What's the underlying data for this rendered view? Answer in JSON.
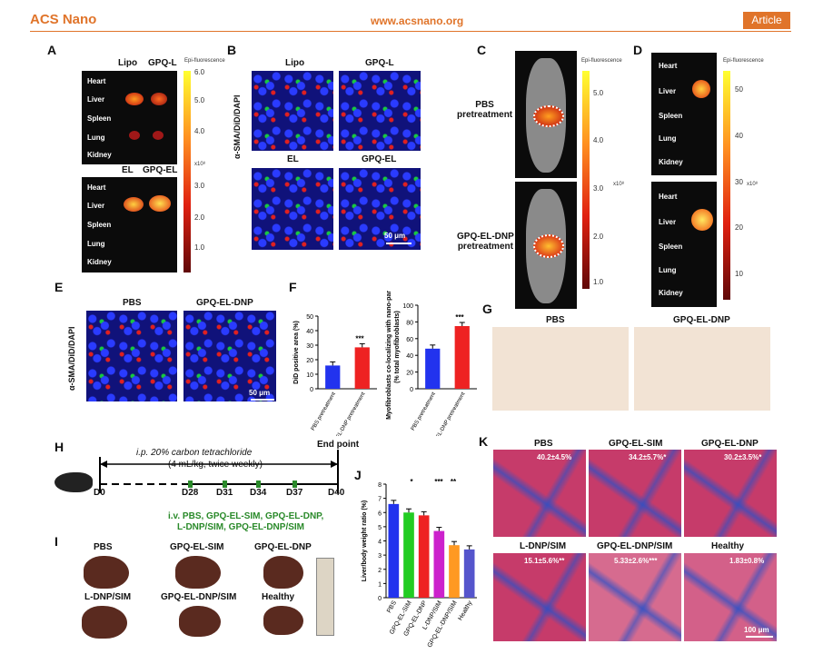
{
  "header": {
    "journal": "ACS Nano",
    "url": "www.acsnano.org",
    "type": "Article"
  },
  "panel_A": {
    "label": "A",
    "top_cols": [
      "Lipo",
      "GPQ-L"
    ],
    "bottom_cols": [
      "EL",
      "GPQ-EL"
    ],
    "organs": [
      "Heart",
      "Liver",
      "Spleen",
      "Lung",
      "Kidney"
    ],
    "colorbar_title": "Epi-fluorescence",
    "colorbar_unit": "x10⁸",
    "colorbar_ticks": [
      "6.0",
      "5.0",
      "4.0",
      "3.0",
      "2.0",
      "1.0"
    ]
  },
  "panel_B": {
    "label": "B",
    "cols_top": [
      "Lipo",
      "GPQ-L"
    ],
    "cols_bottom": [
      "EL",
      "GPQ-EL"
    ],
    "stain": "α-SMA/DiD/DAPI",
    "scalebar": "50 μm"
  },
  "panel_C": {
    "label": "C",
    "rows": [
      "PBS\npretreatment",
      "GPQ-EL-DNP\npretreatment"
    ],
    "colorbar_title": "Epi-fluorescence",
    "colorbar_unit": "x10⁸",
    "colorbar_ticks": [
      "5.0",
      "4.0",
      "3.0",
      "2.0",
      "1.0"
    ]
  },
  "panel_D": {
    "label": "D",
    "organs": [
      "Heart",
      "Liver",
      "Spleen",
      "Lung",
      "Kidney"
    ],
    "colorbar_title": "Epi-fluorescence",
    "colorbar_unit": "x10⁸",
    "colorbar_ticks": [
      "50",
      "40",
      "30",
      "20",
      "10"
    ]
  },
  "panel_E": {
    "label": "E",
    "cols": [
      "PBS",
      "GPQ-EL-DNP"
    ],
    "stain": "α-SMA/DiD/DAPI",
    "scalebar": "50 μm"
  },
  "panel_F": {
    "label": "F",
    "significance": "***"
  },
  "panel_G": {
    "label": "G",
    "cols": [
      "PBS",
      "GPQ-EL-DNP"
    ]
  },
  "panel_H": {
    "label": "H",
    "treatment": "i.p. 20% carbon tetrachloride",
    "dose": "(4 mL/kg, twice weekly)",
    "endpoint": "End point",
    "days": [
      "D0",
      "D28",
      "D31",
      "D34",
      "D37",
      "D40"
    ],
    "iv_line1": "i.v. PBS, GPQ-EL-SIM, GPQ-EL-DNP,",
    "iv_line2": "L-DNP/SIM, GPQ-EL-DNP/SIM"
  },
  "panel_I": {
    "label": "I",
    "groups": [
      "PBS",
      "GPQ-EL-SIM",
      "GPQ-EL-DNP",
      "L-DNP/SIM",
      "GPQ-EL-DNP/SIM",
      "Healthy"
    ]
  },
  "panel_J": {
    "label": "J",
    "sig": [
      "*",
      "***",
      "**"
    ]
  },
  "panel_K": {
    "label": "K",
    "groups": [
      "PBS",
      "GPQ-EL-SIM",
      "GPQ-EL-DNP",
      "L-DNP/SIM",
      "GPQ-EL-DNP/SIM",
      "Healthy"
    ],
    "values": [
      "40.2±4.5%",
      "34.2±5.7%*",
      "30.2±3.5%*",
      "15.1±5.6%**",
      "5.33±2.6%***",
      "1.83±0.8%"
    ],
    "scalebar": "100 μm"
  },
  "chart_data": [
    {
      "type": "bar",
      "categories": [
        "PBS\npretreatment",
        "GPQ-EL-DNP\npretreatment"
      ],
      "values": [
        16,
        28.5
      ],
      "ylabel": "DiD positive area (%)",
      "ylim": [
        0,
        50
      ],
      "yticks": [
        "0",
        "10",
        "20",
        "30",
        "40",
        "50"
      ],
      "colors": [
        "#2233ee",
        "#ee2222"
      ]
    },
    {
      "type": "bar",
      "categories": [
        "PBS\npretreatment",
        "GPQ-EL-DNP\npretreatment"
      ],
      "values": [
        48,
        75
      ],
      "ylabel": "Myofibroblasts co-localizing with nano-particles\n(% total myofibroblasts)",
      "ylim": [
        0,
        100
      ],
      "yticks": [
        "0",
        "20",
        "40",
        "60",
        "80",
        "100"
      ],
      "colors": [
        "#2233ee",
        "#ee2222"
      ]
    },
    {
      "type": "bar",
      "categories": [
        "PBS",
        "GPQ-EL-SIM",
        "GPQ-EL-DNP",
        "L-DNP/SIM",
        "GPQ-EL-DNP/SIM",
        "Healthy"
      ],
      "values": [
        6.6,
        6.0,
        5.8,
        4.7,
        3.7,
        3.4
      ],
      "ylabel": "Liver/body weight ratio (%)",
      "ylim": [
        0,
        8
      ],
      "yticks": [
        "0",
        "1",
        "2",
        "3",
        "4",
        "5",
        "6",
        "7",
        "8"
      ],
      "colors": [
        "#2233ee",
        "#22cc22",
        "#ee2222",
        "#cc22cc",
        "#ff9922",
        "#5555cc"
      ]
    }
  ]
}
